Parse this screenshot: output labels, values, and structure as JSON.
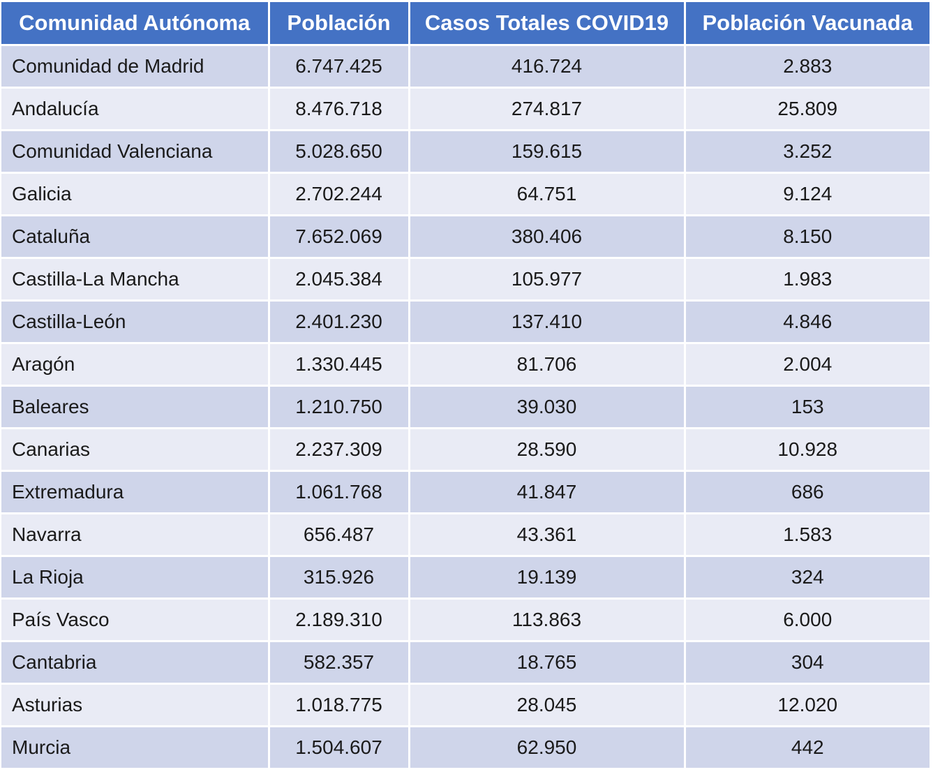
{
  "table": {
    "headers": [
      "Comunidad Autónoma",
      "Población",
      "Casos Totales COVID19",
      "Población Vacunada"
    ],
    "rows": [
      [
        "Comunidad de Madrid",
        "6.747.425",
        "416.724",
        "2.883"
      ],
      [
        "Andalucía",
        "8.476.718",
        "274.817",
        "25.809"
      ],
      [
        "Comunidad Valenciana",
        "5.028.650",
        "159.615",
        "3.252"
      ],
      [
        "Galicia",
        "2.702.244",
        "64.751",
        "9.124"
      ],
      [
        "Cataluña",
        "7.652.069",
        "380.406",
        "8.150"
      ],
      [
        "Castilla-La Mancha",
        "2.045.384",
        "105.977",
        "1.983"
      ],
      [
        "Castilla-León",
        "2.401.230",
        "137.410",
        "4.846"
      ],
      [
        "Aragón",
        "1.330.445",
        "81.706",
        "2.004"
      ],
      [
        "Baleares",
        "1.210.750",
        "39.030",
        "153"
      ],
      [
        "Canarias",
        "2.237.309",
        "28.590",
        "10.928"
      ],
      [
        "Extremadura",
        "1.061.768",
        "41.847",
        "686"
      ],
      [
        "Navarra",
        "656.487",
        "43.361",
        "1.583"
      ],
      [
        "La Rioja",
        "315.926",
        "19.139",
        "324"
      ],
      [
        "País Vasco",
        "2.189.310",
        "113.863",
        "6.000"
      ],
      [
        "Cantabria",
        "582.357",
        "18.765",
        "304"
      ],
      [
        "Asturias",
        "1.018.775",
        "28.045",
        "12.020"
      ],
      [
        "Murcia",
        "1.504.607",
        "62.950",
        "442"
      ]
    ]
  },
  "colors": {
    "header_bg": "#4472c4",
    "header_text": "#ffffff",
    "row_band_dark": "#cfd5ea",
    "row_band_light": "#e9ebf5"
  }
}
